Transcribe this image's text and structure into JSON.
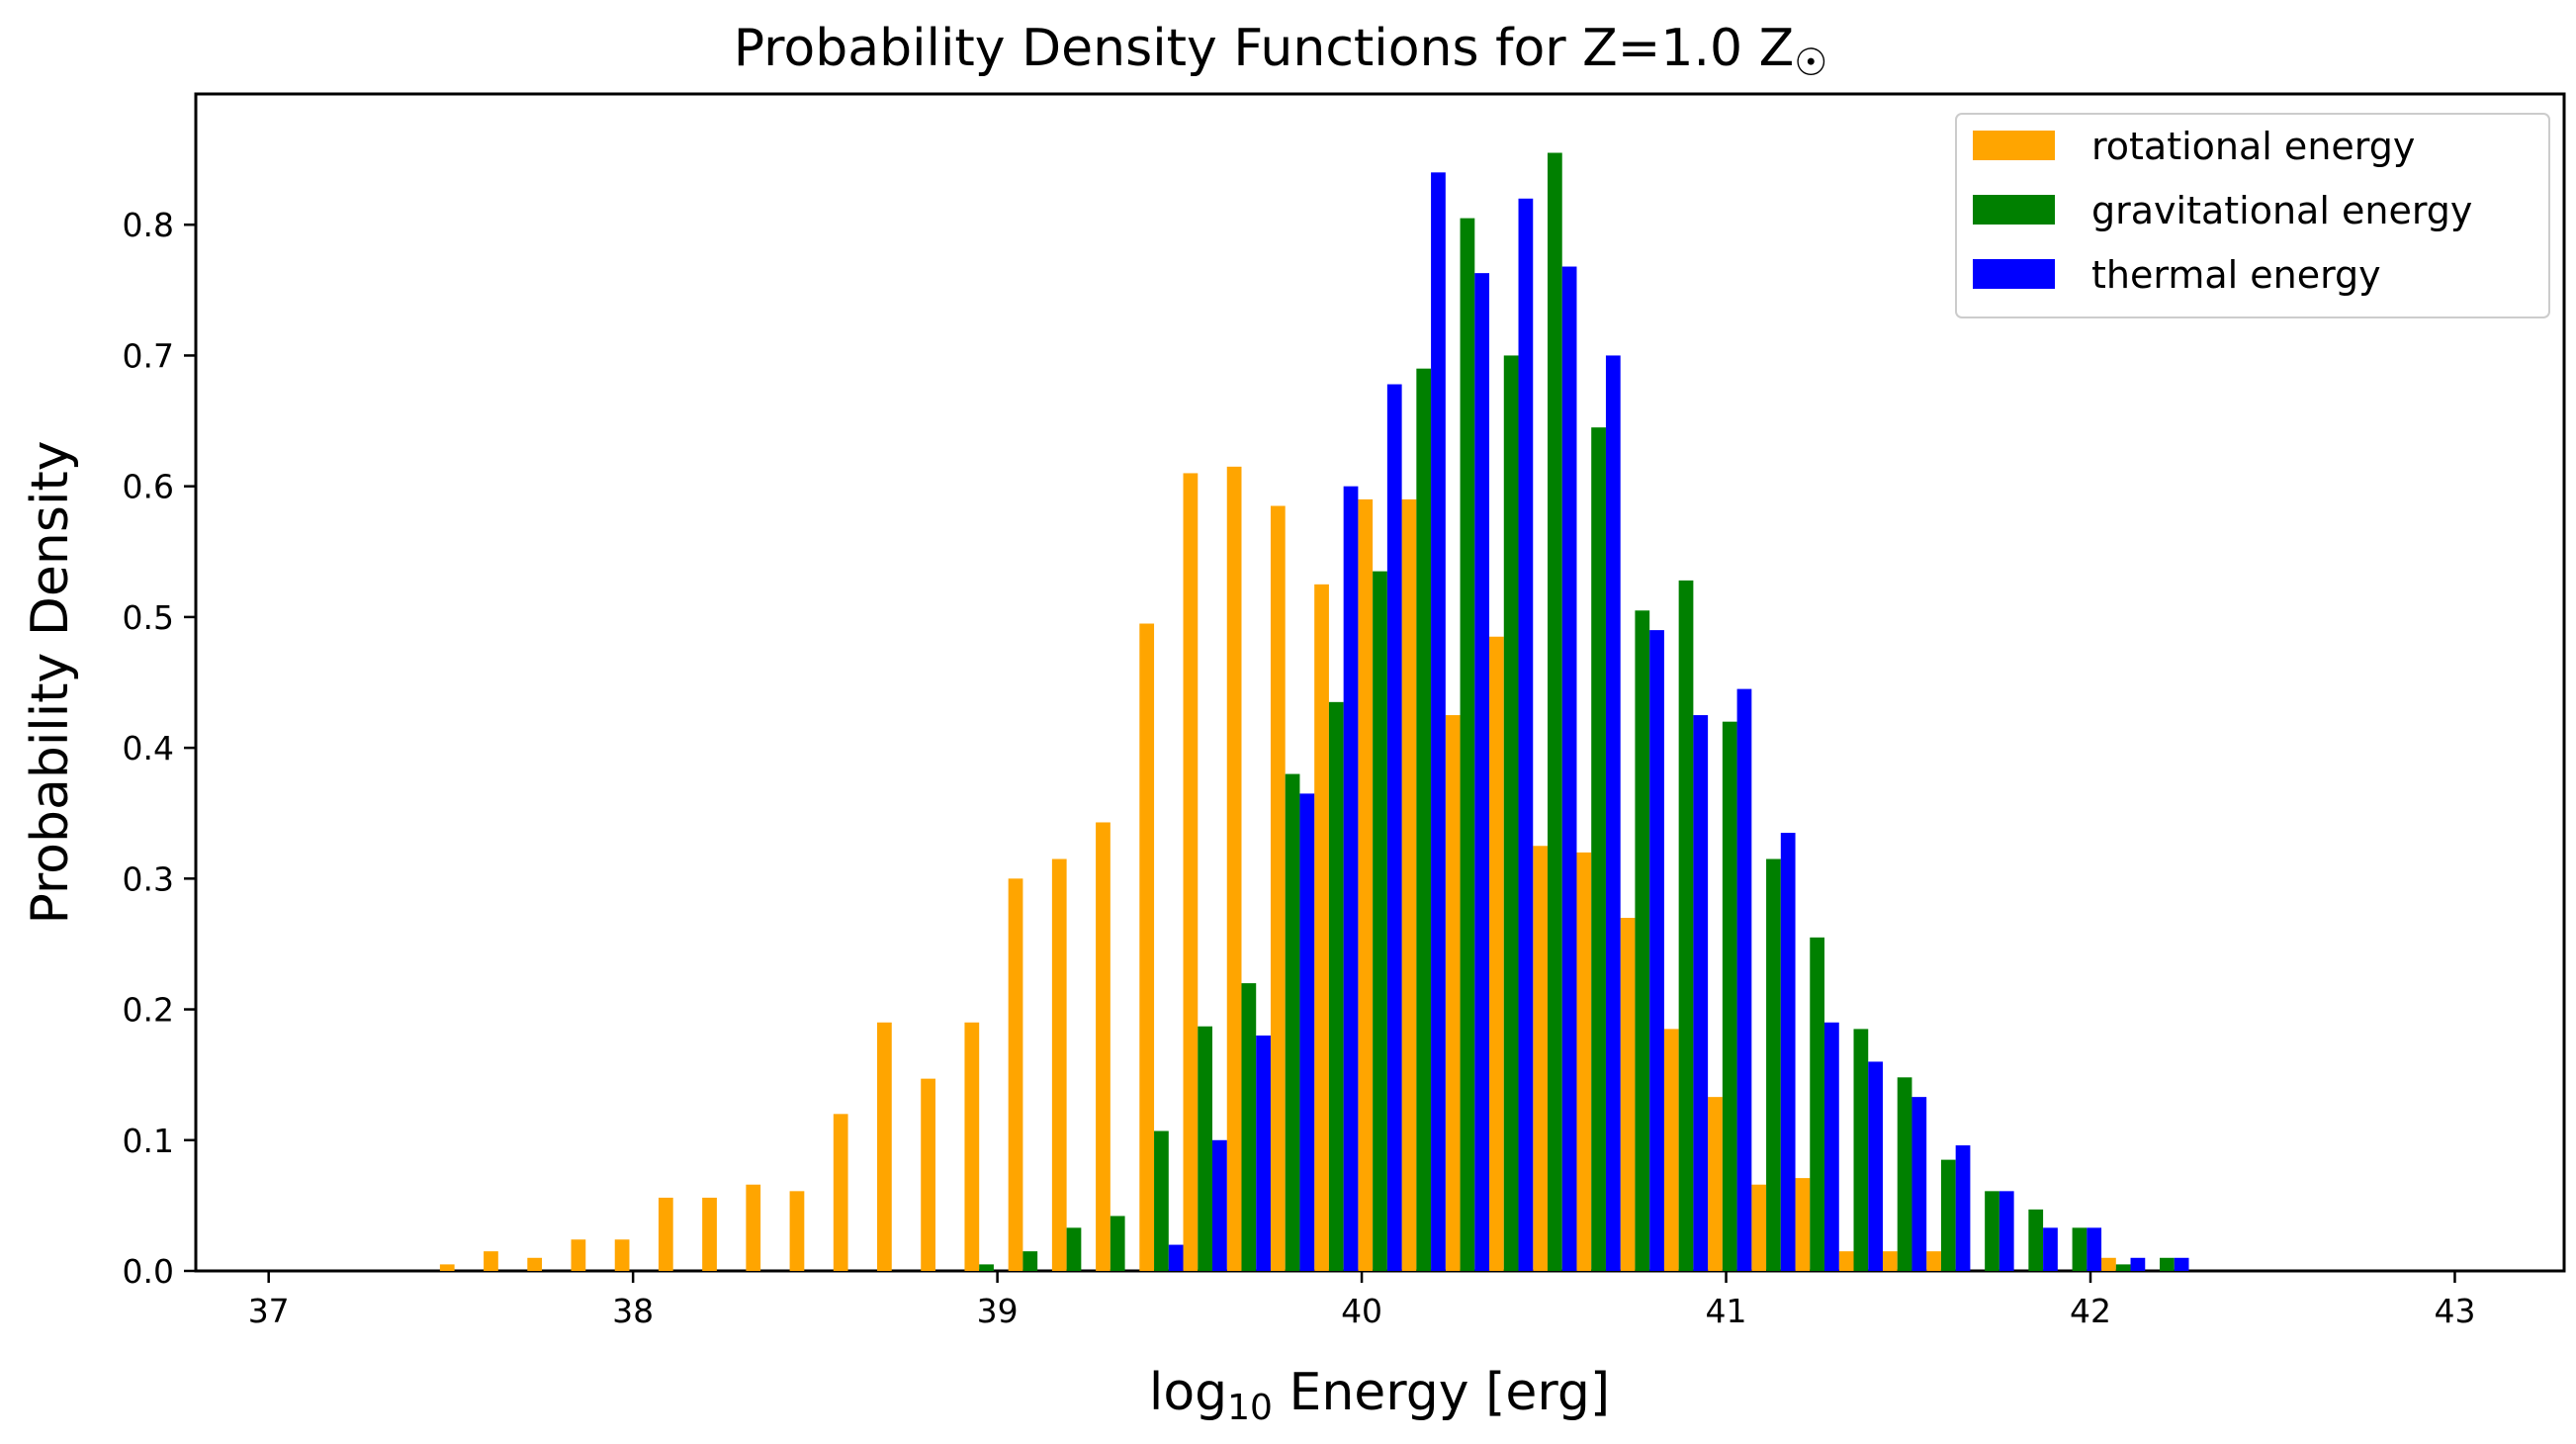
{
  "chart_data": {
    "type": "bar",
    "title": "Probability Density Functions for Z=1.0 Z",
    "title_symbol": "☉",
    "xlabel_prefix": "log",
    "xlabel_sub": "10",
    "xlabel_suffix": " Energy [erg]",
    "ylabel": "Probability Density",
    "xlim": [
      36.8,
      43.3
    ],
    "ylim": [
      0.0,
      0.9
    ],
    "xticks": [
      "37",
      "38",
      "39",
      "40",
      "41",
      "42",
      "43"
    ],
    "yticks": [
      "0.0",
      "0.1",
      "0.2",
      "0.3",
      "0.4",
      "0.5",
      "0.6",
      "0.7",
      "0.8"
    ],
    "legend_position": "top-right",
    "grid": false,
    "series": [
      {
        "name": "rotational energy",
        "color": "#FFA500",
        "x": [
          37.49,
          37.61,
          37.73,
          37.85,
          37.97,
          38.09,
          38.21,
          38.33,
          38.45,
          38.57,
          38.69,
          38.81,
          38.93,
          39.05,
          39.17,
          39.29,
          39.41,
          39.53,
          39.65,
          39.77,
          39.89,
          40.01,
          40.13,
          40.25,
          40.37,
          40.49,
          40.61,
          40.73,
          40.85,
          40.97,
          41.09,
          41.21,
          41.33,
          41.45,
          41.57,
          41.69,
          41.81,
          41.93,
          42.05
        ],
        "values": [
          0.005,
          0.015,
          0.01,
          0.024,
          0.024,
          0.056,
          0.056,
          0.066,
          0.061,
          0.12,
          0.19,
          0.147,
          0.19,
          0.3,
          0.315,
          0.343,
          0.495,
          0.61,
          0.615,
          0.585,
          0.525,
          0.59,
          0.59,
          0.425,
          0.485,
          0.325,
          0.32,
          0.27,
          0.185,
          0.133,
          0.066,
          0.071,
          0.015,
          0.015,
          0.015,
          0.0,
          0.0,
          0.0,
          0.01
        ]
      },
      {
        "name": "gravitational energy",
        "color": "#008000",
        "x": [
          38.97,
          39.09,
          39.21,
          39.33,
          39.45,
          39.57,
          39.69,
          39.81,
          39.93,
          40.05,
          40.17,
          40.29,
          40.41,
          40.53,
          40.65,
          40.77,
          40.89,
          41.01,
          41.13,
          41.25,
          41.37,
          41.49,
          41.61,
          41.73,
          41.85,
          41.97,
          42.09,
          42.21
        ],
        "values": [
          0.005,
          0.015,
          0.033,
          0.042,
          0.107,
          0.187,
          0.22,
          0.38,
          0.435,
          0.535,
          0.69,
          0.805,
          0.7,
          0.855,
          0.645,
          0.505,
          0.528,
          0.42,
          0.315,
          0.255,
          0.185,
          0.148,
          0.085,
          0.061,
          0.047,
          0.033,
          0.005,
          0.01
        ]
      },
      {
        "name": "thermal energy",
        "color": "#0000FF",
        "x": [
          39.49,
          39.61,
          39.73,
          39.85,
          39.97,
          40.09,
          40.21,
          40.33,
          40.45,
          40.57,
          40.69,
          40.81,
          40.93,
          41.05,
          41.17,
          41.29,
          41.41,
          41.53,
          41.65,
          41.77,
          41.89,
          42.01,
          42.13,
          42.25
        ],
        "values": [
          0.02,
          0.1,
          0.18,
          0.365,
          0.6,
          0.678,
          0.84,
          0.763,
          0.82,
          0.768,
          0.7,
          0.49,
          0.425,
          0.445,
          0.335,
          0.19,
          0.16,
          0.133,
          0.096,
          0.061,
          0.033,
          0.033,
          0.01,
          0.01
        ]
      }
    ]
  }
}
